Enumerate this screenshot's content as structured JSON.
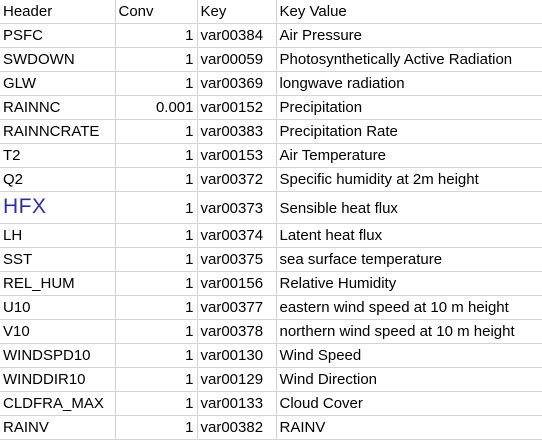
{
  "columns": {
    "header": "Header",
    "conv": "Conv",
    "key": "Key",
    "key_value": "Key Value"
  },
  "rows": [
    {
      "header": "PSFC",
      "conv": "1",
      "key": "var00384",
      "key_value": "Air Pressure"
    },
    {
      "header": "SWDOWN",
      "conv": "1",
      "key": "var00059",
      "key_value": "Photosynthetically Active Radiation"
    },
    {
      "header": "GLW",
      "conv": "1",
      "key": "var00369",
      "key_value": "longwave radiation"
    },
    {
      "header": "RAINNC",
      "conv": "0.001",
      "key": "var00152",
      "key_value": "Precipitation"
    },
    {
      "header": "RAINNCRATE",
      "conv": "1",
      "key": "var00383",
      "key_value": "Precipitation Rate"
    },
    {
      "header": "T2",
      "conv": "1",
      "key": "var00153",
      "key_value": "Air Temperature"
    },
    {
      "header": "Q2",
      "conv": "1",
      "key": "var00372",
      "key_value": "Specific humidity at 2m height"
    },
    {
      "header": "HFX",
      "conv": "1",
      "key": "var00373",
      "key_value": "Sensible heat flux"
    },
    {
      "header": "LH",
      "conv": "1",
      "key": "var00374",
      "key_value": "Latent heat flux"
    },
    {
      "header": "SST",
      "conv": "1",
      "key": "var00375",
      "key_value": "sea surface temperature"
    },
    {
      "header": "REL_HUM",
      "conv": "1",
      "key": "var00156",
      "key_value": "Relative Humidity"
    },
    {
      "header": "U10",
      "conv": "1",
      "key": "var00377",
      "key_value": "eastern wind speed at 10 m height"
    },
    {
      "header": "V10",
      "conv": "1",
      "key": "var00378",
      "key_value": "northern wind speed at 10 m height"
    },
    {
      "header": "WINDSPD10",
      "conv": "1",
      "key": "var00130",
      "key_value": "Wind Speed"
    },
    {
      "header": "WINDDIR10",
      "conv": "1",
      "key": "var00129",
      "key_value": "Wind Direction"
    },
    {
      "header": "CLDFRA_MAX",
      "conv": "1",
      "key": "var00133",
      "key_value": "Cloud Cover"
    },
    {
      "header": "RAINV",
      "conv": "1",
      "key": "var00382",
      "key_value": "RAINV"
    }
  ],
  "colors": {
    "gridline": "#d4d4d4",
    "hfx_text": "#2f2f9e"
  }
}
